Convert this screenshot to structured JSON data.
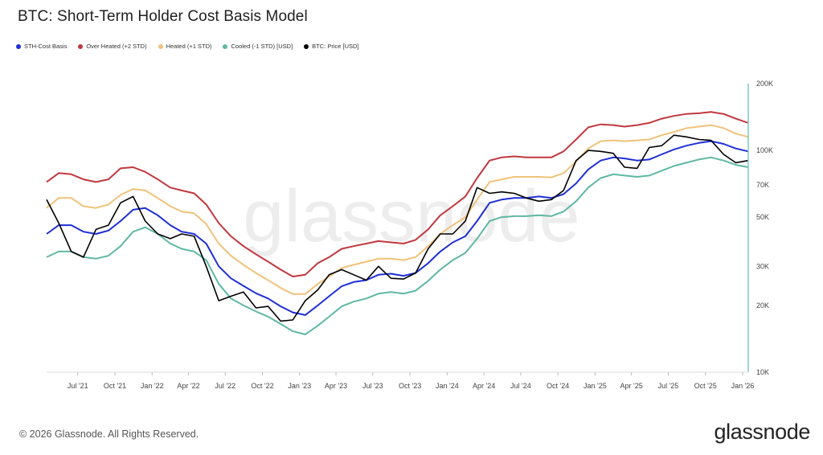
{
  "title": "BTC: Short-Term Holder Cost Basis Model",
  "watermark": "glassnode",
  "copyright": "© 2026 Glassnode. All Rights Reserved.",
  "brand": "glassnode",
  "chart_data": {
    "type": "line",
    "title": "BTC: Short-Term Holder Cost Basis Model",
    "y_scale": "log",
    "ylim": [
      10000,
      200000
    ],
    "xlim": [
      "2021-04-15",
      "2026-01-15"
    ],
    "y_ticks": [
      {
        "value": 10000,
        "label": "10K"
      },
      {
        "value": 20000,
        "label": "20K"
      },
      {
        "value": 30000,
        "label": "30K"
      },
      {
        "value": 50000,
        "label": "50K"
      },
      {
        "value": 70000,
        "label": "70K"
      },
      {
        "value": 100000,
        "label": "100K"
      },
      {
        "value": 200000,
        "label": "200K"
      }
    ],
    "x_ticks": [
      {
        "date": "2021-07-01",
        "label": "Jul '21"
      },
      {
        "date": "2021-10-01",
        "label": "Oct '21"
      },
      {
        "date": "2022-01-01",
        "label": "Jan '22"
      },
      {
        "date": "2022-04-01",
        "label": "Apr '22"
      },
      {
        "date": "2022-07-01",
        "label": "Jul '22"
      },
      {
        "date": "2022-10-01",
        "label": "Oct '22"
      },
      {
        "date": "2023-01-01",
        "label": "Jan '23"
      },
      {
        "date": "2023-04-01",
        "label": "Apr '23"
      },
      {
        "date": "2023-07-01",
        "label": "Jul '23"
      },
      {
        "date": "2023-10-01",
        "label": "Oct '23"
      },
      {
        "date": "2024-01-01",
        "label": "Jan '24"
      },
      {
        "date": "2024-04-01",
        "label": "Apr '24"
      },
      {
        "date": "2024-07-01",
        "label": "Jul '24"
      },
      {
        "date": "2024-10-01",
        "label": "Oct '24"
      },
      {
        "date": "2025-01-01",
        "label": "Jan '25"
      },
      {
        "date": "2025-04-01",
        "label": "Apr '25"
      },
      {
        "date": "2025-07-01",
        "label": "Jul '25"
      },
      {
        "date": "2025-10-01",
        "label": "Oct '25"
      },
      {
        "date": "2026-01-01",
        "label": "Jan '26"
      }
    ],
    "legend_position": "top-left",
    "grid": false,
    "x": [
      "2021-04-15",
      "2021-05-15",
      "2021-06-15",
      "2021-07-15",
      "2021-08-15",
      "2021-09-15",
      "2021-10-15",
      "2021-11-15",
      "2021-12-15",
      "2022-01-15",
      "2022-02-15",
      "2022-03-15",
      "2022-04-15",
      "2022-05-15",
      "2022-06-15",
      "2022-07-15",
      "2022-08-15",
      "2022-09-15",
      "2022-10-15",
      "2022-11-15",
      "2022-12-15",
      "2023-01-15",
      "2023-02-15",
      "2023-03-15",
      "2023-04-15",
      "2023-05-15",
      "2023-06-15",
      "2023-07-15",
      "2023-08-15",
      "2023-09-15",
      "2023-10-15",
      "2023-11-15",
      "2023-12-15",
      "2024-01-15",
      "2024-02-15",
      "2024-03-15",
      "2024-04-15",
      "2024-05-15",
      "2024-06-15",
      "2024-07-15",
      "2024-08-15",
      "2024-09-15",
      "2024-10-15",
      "2024-11-15",
      "2024-12-15",
      "2025-01-15",
      "2025-02-15",
      "2025-03-15",
      "2025-04-15",
      "2025-05-15",
      "2025-06-15",
      "2025-07-15",
      "2025-08-15",
      "2025-09-15",
      "2025-10-15",
      "2025-11-15",
      "2025-12-15",
      "2026-01-15"
    ],
    "series": [
      {
        "name": "STH-Cost Basis",
        "color": "#1f2fd6",
        "values": [
          42000,
          46000,
          46000,
          43000,
          42000,
          43500,
          48000,
          54000,
          55000,
          51000,
          46000,
          43000,
          42000,
          38000,
          30000,
          26500,
          24500,
          22700,
          21500,
          19800,
          18600,
          18100,
          20000,
          22000,
          24400,
          25500,
          26000,
          27500,
          27800,
          27200,
          28000,
          31000,
          35000,
          38500,
          41000,
          48000,
          58000,
          60000,
          61000,
          61000,
          62000,
          61000,
          63500,
          71000,
          82000,
          90000,
          93000,
          92000,
          90000,
          91000,
          96000,
          101000,
          105000,
          108000,
          110000,
          107000,
          102000,
          99000
        ]
      },
      {
        "name": "Over Heated (+2 STD)",
        "color": "#c0383f",
        "values": [
          72000,
          79000,
          78000,
          74000,
          72000,
          74000,
          83000,
          84000,
          80000,
          74000,
          68000,
          66000,
          64000,
          57000,
          47000,
          41000,
          37000,
          34000,
          31500,
          29000,
          27000,
          27500,
          31000,
          33000,
          36000,
          37000,
          38000,
          39000,
          38500,
          38000,
          39500,
          44000,
          51000,
          56000,
          62000,
          75000,
          90000,
          93000,
          94000,
          93000,
          93000,
          93000,
          99000,
          112000,
          127000,
          131000,
          130000,
          128000,
          130000,
          133000,
          139000,
          143000,
          146000,
          147000,
          149000,
          146000,
          139000,
          133000
        ]
      },
      {
        "name": "Heated (+1 STD)",
        "color": "#f0c27a",
        "values": [
          55000,
          61000,
          61000,
          56000,
          55000,
          57000,
          63000,
          67000,
          66000,
          61000,
          56000,
          53000,
          52000,
          46500,
          38000,
          33500,
          30500,
          28000,
          26000,
          24000,
          22500,
          22500,
          25000,
          27000,
          29500,
          30500,
          31500,
          32500,
          32500,
          32000,
          33000,
          37000,
          42000,
          46000,
          50000,
          60000,
          72000,
          74000,
          76000,
          76000,
          76000,
          75500,
          79000,
          89000,
          102000,
          110000,
          111000,
          110000,
          111000,
          112000,
          117000,
          121000,
          126000,
          128000,
          130000,
          126000,
          119000,
          115000
        ]
      },
      {
        "name": "Cooled (-1 STD) [USD]",
        "color": "#5fb8a3",
        "values": [
          33000,
          35000,
          35000,
          33000,
          32500,
          33500,
          37000,
          43000,
          45000,
          42000,
          38000,
          36000,
          35000,
          32000,
          25000,
          21500,
          20000,
          18800,
          17800,
          16500,
          15300,
          14800,
          16200,
          17800,
          19800,
          20800,
          21500,
          22600,
          23000,
          22600,
          23300,
          25800,
          29000,
          32000,
          34500,
          40000,
          48000,
          50000,
          50500,
          50500,
          51000,
          50500,
          53000,
          59000,
          68000,
          75000,
          78000,
          77000,
          76000,
          77000,
          81000,
          85000,
          88000,
          91000,
          93000,
          90000,
          86000,
          84000
        ]
      },
      {
        "name": "BTC: Price [USD]",
        "color": "#000000",
        "values": [
          60000,
          47000,
          35000,
          33000,
          44000,
          46000,
          58000,
          62000,
          48000,
          42000,
          40000,
          42000,
          41000,
          30000,
          21000,
          22000,
          23000,
          19500,
          19800,
          17000,
          17200,
          21000,
          23500,
          27500,
          29000,
          27500,
          26000,
          30000,
          26500,
          26300,
          28000,
          36000,
          42000,
          42000,
          48000,
          68000,
          64000,
          65000,
          64000,
          61000,
          59000,
          60000,
          66000,
          90000,
          100000,
          99000,
          97000,
          84000,
          83000,
          103000,
          105000,
          117000,
          115000,
          112000,
          111000,
          96000,
          88000,
          90000
        ]
      }
    ]
  }
}
